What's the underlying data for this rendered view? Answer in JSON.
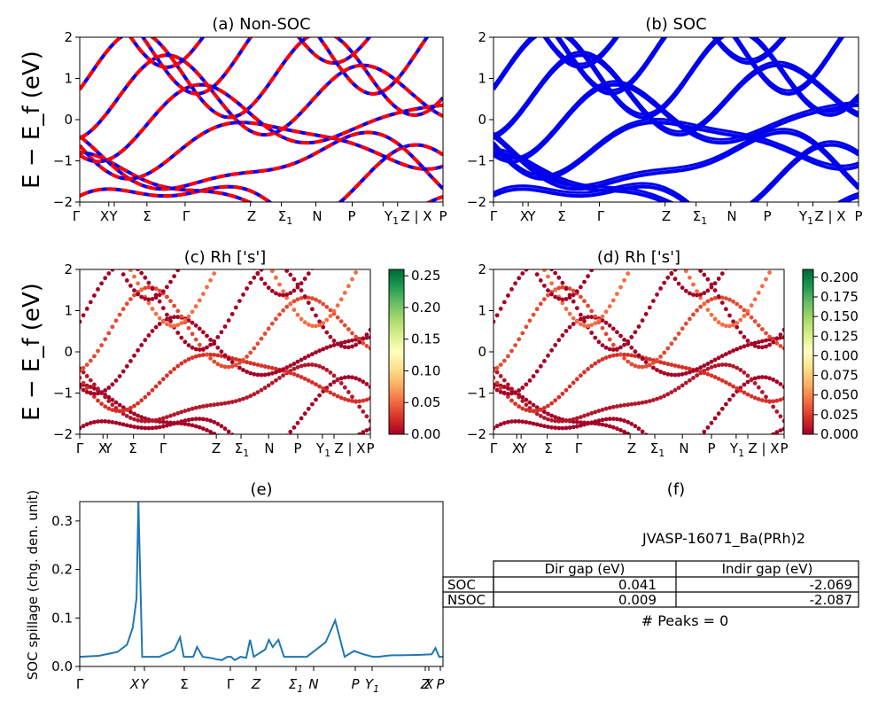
{
  "panels": {
    "a": {
      "title": "(a) Non-SOC"
    },
    "b": {
      "title": "(b) SOC"
    },
    "c": {
      "title": "(c)  Rh ['s']"
    },
    "d": {
      "title": "(d) Rh ['s']"
    },
    "e": {
      "title": "(e)"
    },
    "f": {
      "title": "(f)"
    }
  },
  "band_ylabel": "E − E_f (eV)",
  "band_yticks": [
    "2",
    "1",
    "0",
    "−1",
    "−2"
  ],
  "kpath_labels": [
    "Γ",
    "X",
    "Y",
    "Σ",
    "Γ",
    "Z",
    "Σ1",
    "N",
    "P",
    "Y1",
    "Z | X",
    "P"
  ],
  "colorbar_c_ticks": [
    "0.25",
    "0.20",
    "0.15",
    "0.10",
    "0.05",
    "0.00"
  ],
  "colorbar_d_ticks": [
    "0.200",
    "0.175",
    "0.150",
    "0.125",
    "0.100",
    "0.075",
    "0.050",
    "0.025",
    "0.000"
  ],
  "spillage": {
    "ylabel": "SOC spillage (chg. den. unit)",
    "yticks": [
      "0.3",
      "0.2",
      "0.1",
      "0.0"
    ],
    "xticks": [
      "Γ",
      "X",
      "Y",
      "Σ",
      "Γ",
      "Z",
      "Σ1",
      "N",
      "P",
      "Y1",
      "Z",
      "X",
      "P"
    ]
  },
  "summary": {
    "material": "JVASP-16071_Ba(PRh)2",
    "headers": [
      "Dir gap (eV)",
      "Indir gap (eV)"
    ],
    "rows": [
      {
        "label": "SOC",
        "dir": "0.041",
        "indir": "-2.069"
      },
      {
        "label": "NSOC",
        "dir": "0.009",
        "indir": "-2.087"
      }
    ],
    "peaks": "# Peaks = 0"
  },
  "colors": {
    "nonsoc_blue": "#0000ff",
    "nonsoc_red": "#ff0000",
    "soc": "#0000ee",
    "spillage_line": "#1f77b4"
  },
  "chart_data": [
    {
      "type": "line",
      "panel": "a",
      "title": "(a) Non-SOC",
      "ylim": [
        -2,
        2
      ],
      "ylabel": "E − E_f (eV)",
      "x_labels": [
        "Γ",
        "X",
        "Y",
        "Σ",
        "Γ",
        "Z",
        "Σ1",
        "N",
        "P",
        "Y1",
        "Z | X",
        "P"
      ]
    },
    {
      "type": "line",
      "panel": "b",
      "title": "(b) SOC",
      "ylim": [
        -2,
        2
      ],
      "x_labels": [
        "Γ",
        "X",
        "Y",
        "Σ",
        "Γ",
        "Z",
        "Σ1",
        "N",
        "P",
        "Y1",
        "Z | X",
        "P"
      ]
    },
    {
      "type": "scatter",
      "panel": "c",
      "title": "(c)  Rh ['s']",
      "ylim": [
        -2,
        2
      ],
      "colorbar_range": [
        0,
        0.26
      ]
    },
    {
      "type": "scatter",
      "panel": "d",
      "title": "(d) Rh ['s']",
      "ylim": [
        -2,
        2
      ],
      "colorbar_range": [
        0,
        0.21
      ]
    },
    {
      "type": "line",
      "panel": "e",
      "title": "(e)",
      "ylabel": "SOC spillage (chg. den. unit)",
      "ylim": [
        0,
        0.34
      ],
      "x": [
        0,
        0.1,
        0.2,
        0.25,
        0.28,
        0.3,
        0.31,
        0.33,
        0.34,
        0.35,
        0.36,
        0.38,
        0.42,
        0.45,
        0.48,
        0.5,
        0.53,
        0.55,
        0.57,
        0.6,
        0.62,
        0.65,
        0.7,
        0.72,
        0.75,
        0.78,
        0.8,
        0.82,
        0.85,
        0.88,
        0.9,
        0.92,
        0.94,
        0.96,
        0.98,
        1.0,
        1.02,
        1.05,
        1.08,
        1.12,
        1.2,
        1.25,
        1.3,
        1.35,
        1.4,
        1.45,
        1.5,
        1.55,
        1.58,
        1.6,
        1.62,
        1.65,
        1.7,
        1.8,
        1.86,
        1.88,
        1.9,
        1.92
      ],
      "y": [
        0.02,
        0.022,
        0.03,
        0.045,
        0.08,
        0.14,
        0.34,
        0.02,
        0.02,
        0.02,
        0.02,
        0.02,
        0.02,
        0.025,
        0.03,
        0.035,
        0.06,
        0.02,
        0.02,
        0.02,
        0.04,
        0.02,
        0.017,
        0.015,
        0.013,
        0.02,
        0.02,
        0.013,
        0.02,
        0.018,
        0.055,
        0.02,
        0.025,
        0.03,
        0.035,
        0.055,
        0.04,
        0.055,
        0.02,
        0.02,
        0.02,
        0.035,
        0.05,
        0.095,
        0.02,
        0.032,
        0.025,
        0.02,
        0.02,
        0.021,
        0.022,
        0.023,
        0.023,
        0.024,
        0.025,
        0.038,
        0.02,
        0.02
      ]
    }
  ]
}
